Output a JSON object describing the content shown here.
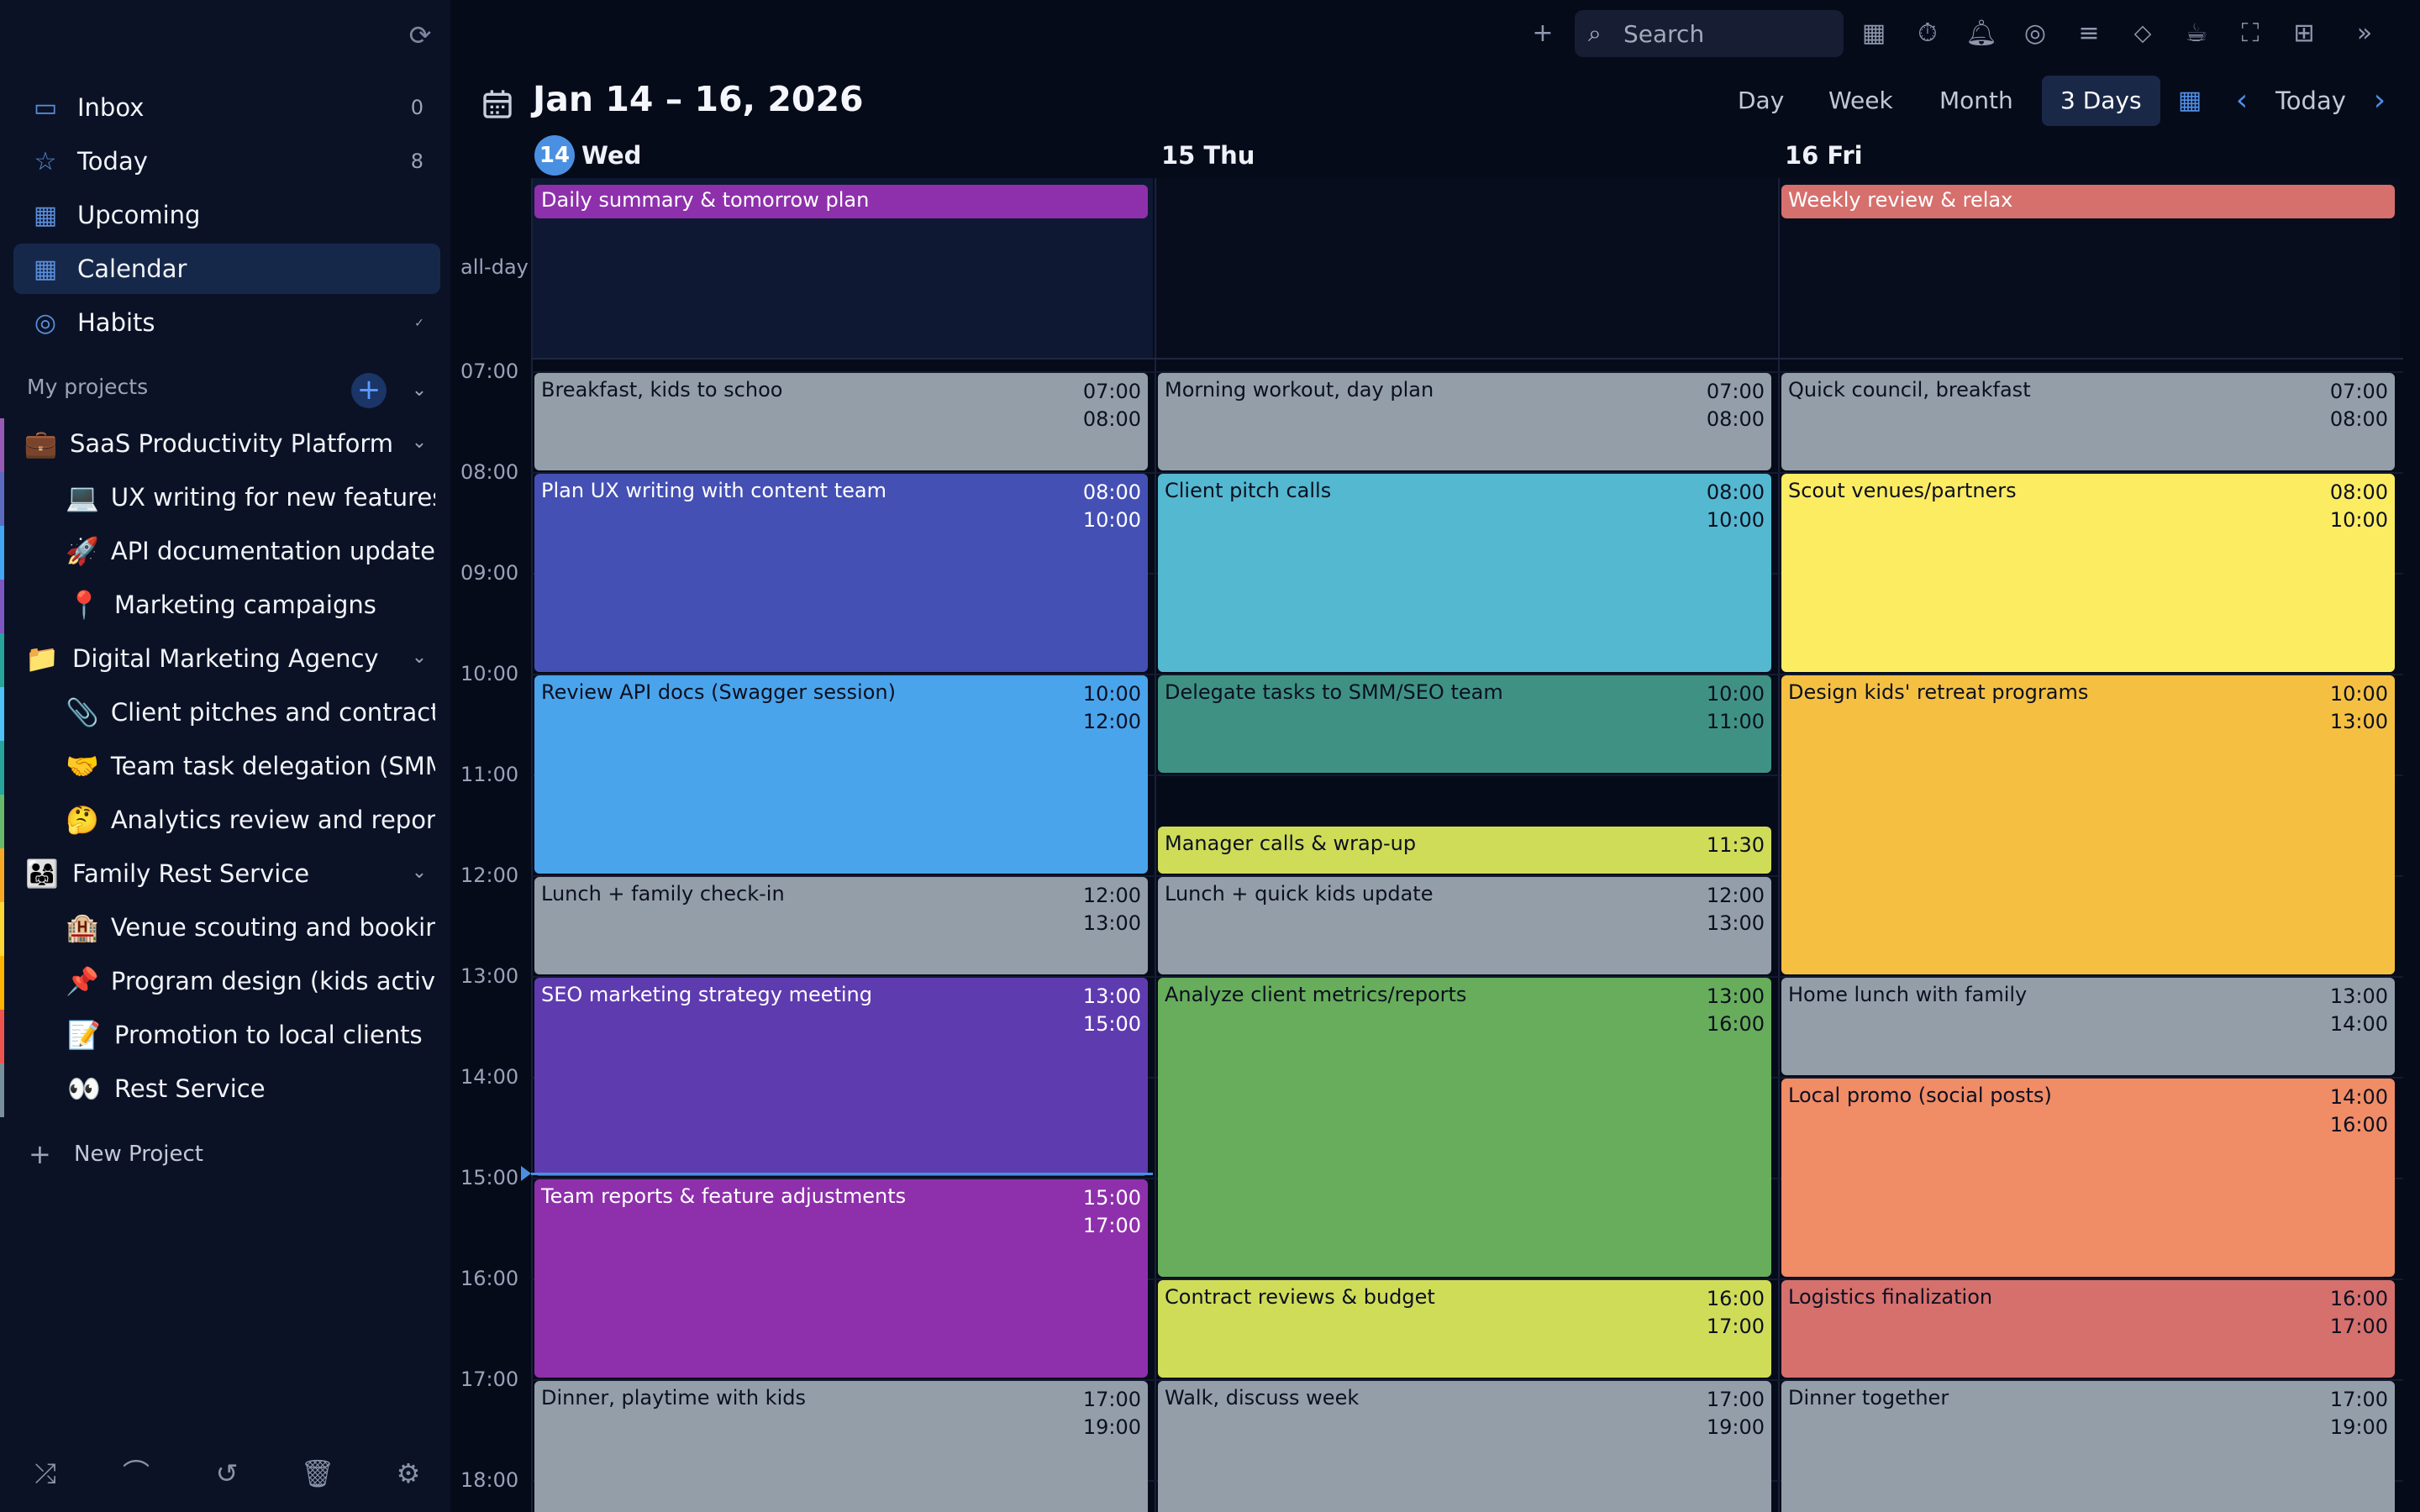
{
  "sidebar": {
    "nav": [
      {
        "label": "Inbox",
        "count": "0",
        "icon": "inbox-icon"
      },
      {
        "label": "Today",
        "count": "8",
        "icon": "star-icon"
      },
      {
        "label": "Upcoming",
        "count": "",
        "icon": "calendar-14-icon"
      },
      {
        "label": "Calendar",
        "count": "",
        "icon": "calendar-grid-icon"
      },
      {
        "label": "Habits",
        "count": "",
        "icon": "habit-target-icon"
      }
    ],
    "projects_title": "My projects",
    "projects": [
      {
        "emoji": "💼",
        "label": "SaaS Productivity Platform",
        "color": "#9b59b6"
      },
      {
        "emoji": "💻",
        "label": "UX writing for new features",
        "color": "#5c6bc0"
      },
      {
        "emoji": "🚀",
        "label": "API documentation update",
        "color": "#42a5f5"
      },
      {
        "emoji": "📍",
        "label": "Marketing campaigns",
        "color": "#7e57c2"
      },
      {
        "emoji": "📁",
        "label": "Digital Marketing Agency",
        "color": "#26a69a"
      },
      {
        "emoji": "📎",
        "label": "Client pitches and contracts",
        "color": "#4fc3f7"
      },
      {
        "emoji": "🤝",
        "label": "Team task delegation (SMM, SEO)",
        "color": "#26a69a"
      },
      {
        "emoji": "🤔",
        "label": "Analytics review and reporting",
        "color": "#66bb6a"
      },
      {
        "emoji": "👨‍👩‍👧",
        "label": "Family Rest Service",
        "color": "#f9a825"
      },
      {
        "emoji": "🏨",
        "label": "Venue scouting and bookings",
        "color": "#fdd835"
      },
      {
        "emoji": "📌",
        "label": "Program design (kids activities)",
        "color": "#ffb300"
      },
      {
        "emoji": "📝",
        "label": "Promotion to local clients",
        "color": "#ef5350"
      },
      {
        "emoji": "👀",
        "label": "Rest Service",
        "color": "#78909c"
      }
    ],
    "new_project_label": "New Project"
  },
  "search": {
    "placeholder": "Search"
  },
  "header": {
    "range_title": "Jan 14 – 16, 2026",
    "views": [
      "Day",
      "Week",
      "Month",
      "3 Days"
    ],
    "active_view": "3 Days",
    "today_label": "Today"
  },
  "days": [
    {
      "num": "14",
      "name": "Wed",
      "is_today": true
    },
    {
      "num": "15",
      "name": "Thu",
      "is_today": false
    },
    {
      "num": "16",
      "name": "Fri",
      "is_today": false
    }
  ],
  "allday_label": "all-day",
  "allday_events": [
    {
      "day": 0,
      "title": "Daily summary & tomorrow plan",
      "color": "#8e30ab"
    },
    {
      "day": 2,
      "title": "Weekly review & relax",
      "color": "#d6706d"
    }
  ],
  "hours": [
    "07:00",
    "08:00",
    "09:00",
    "10:00",
    "11:00",
    "12:00",
    "13:00",
    "14:00",
    "15:00",
    "16:00",
    "17:00",
    "18:00"
  ],
  "events": [
    {
      "day": 0,
      "title": "Breakfast, kids to schoo",
      "start": "07:00",
      "end": "08:00",
      "color": "#939ea9",
      "light": false
    },
    {
      "day": 0,
      "title": "Plan UX writing with content team",
      "start": "08:00",
      "end": "10:00",
      "color": "#4450b4",
      "light": true
    },
    {
      "day": 0,
      "title": "Review API docs (Swagger session)",
      "start": "10:00",
      "end": "12:00",
      "color": "#4aa4ec",
      "light": false
    },
    {
      "day": 0,
      "title": "Lunch + family check-in",
      "start": "12:00",
      "end": "13:00",
      "color": "#939ea9",
      "light": false
    },
    {
      "day": 0,
      "title": "SEO marketing strategy meeting",
      "start": "13:00",
      "end": "15:00",
      "color": "#5f3bb0",
      "light": true
    },
    {
      "day": 0,
      "title": "Team reports & feature adjustments",
      "start": "15:00",
      "end": "17:00",
      "color": "#8e30ab",
      "light": true
    },
    {
      "day": 0,
      "title": "Dinner, playtime with kids",
      "start": "17:00",
      "end": "19:00",
      "color": "#939ea9",
      "light": false
    },
    {
      "day": 1,
      "title": "Morning workout, day plan",
      "start": "07:00",
      "end": "08:00",
      "color": "#939ea9",
      "light": false
    },
    {
      "day": 1,
      "title": "Client pitch calls",
      "start": "08:00",
      "end": "10:00",
      "color": "#54b8d0",
      "light": false
    },
    {
      "day": 1,
      "title": "Delegate tasks to SMM/SEO team",
      "start": "10:00",
      "end": "11:00",
      "color": "#3f9283",
      "light": false
    },
    {
      "day": 1,
      "title": "Manager calls & wrap-up",
      "start": "11:30",
      "end": "",
      "color": "#cfdc58",
      "light": false
    },
    {
      "day": 1,
      "title": "Lunch + quick kids update",
      "start": "12:00",
      "end": "13:00",
      "color": "#939ea9",
      "light": false
    },
    {
      "day": 1,
      "title": "Analyze client metrics/reports",
      "start": "13:00",
      "end": "16:00",
      "color": "#67ad5b",
      "light": false
    },
    {
      "day": 1,
      "title": "Contract reviews & budget",
      "start": "16:00",
      "end": "17:00",
      "color": "#cfdc58",
      "light": false
    },
    {
      "day": 1,
      "title": "Walk, discuss week",
      "start": "17:00",
      "end": "19:00",
      "color": "#939ea9",
      "light": false
    },
    {
      "day": 2,
      "title": "Quick council, breakfast",
      "start": "07:00",
      "end": "08:00",
      "color": "#939ea9",
      "light": false
    },
    {
      "day": 2,
      "title": "Scout venues/partners",
      "start": "08:00",
      "end": "10:00",
      "color": "#fcec62",
      "light": false
    },
    {
      "day": 2,
      "title": "Design kids' retreat programs",
      "start": "10:00",
      "end": "13:00",
      "color": "#f5c042",
      "light": false
    },
    {
      "day": 2,
      "title": "Home lunch with family",
      "start": "13:00",
      "end": "14:00",
      "color": "#939ea9",
      "light": false
    },
    {
      "day": 2,
      "title": "Local promo (social posts)",
      "start": "14:00",
      "end": "16:00",
      "color": "#f08c66",
      "light": false
    },
    {
      "day": 2,
      "title": "Logistics finalization",
      "start": "16:00",
      "end": "17:00",
      "color": "#d6706d",
      "light": false
    },
    {
      "day": 2,
      "title": "Dinner together",
      "start": "17:00",
      "end": "19:00",
      "color": "#939ea9",
      "light": false
    }
  ]
}
